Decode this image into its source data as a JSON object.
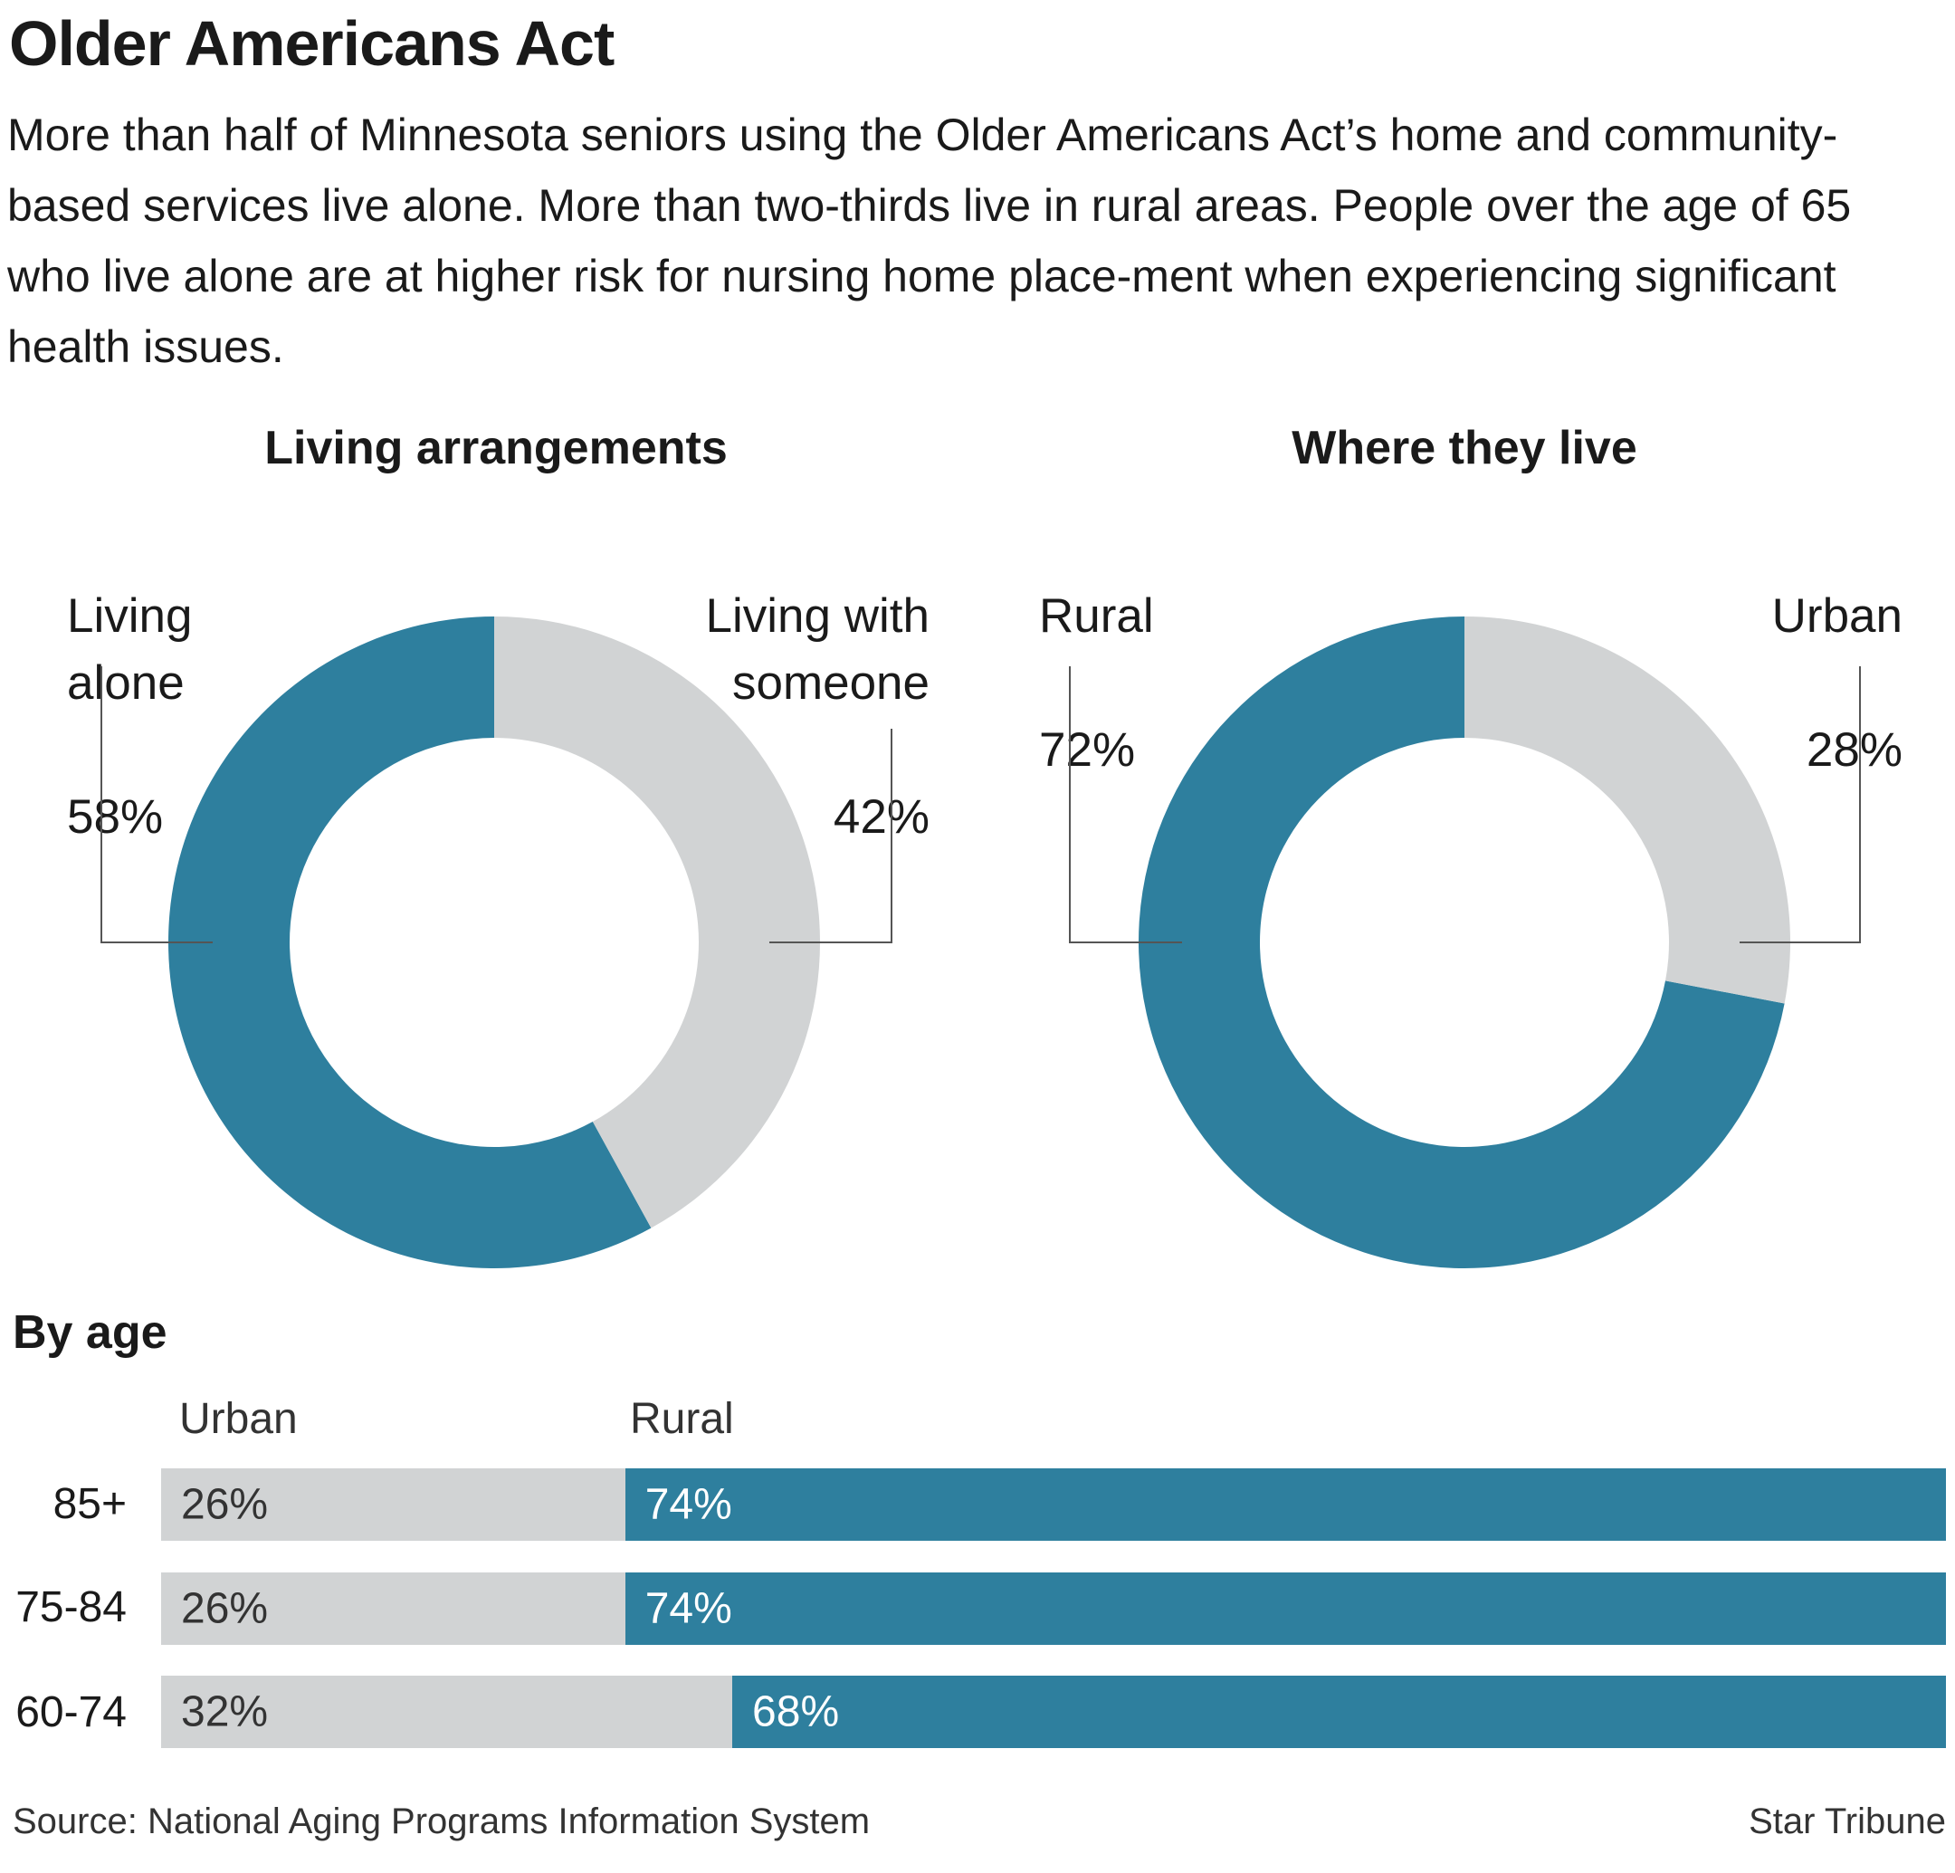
{
  "title": "Older Americans Act",
  "intro": "More than half of Minnesota seniors using the Older Americans Act’s home and community-based services live alone. More than two-thirds live in rural areas. People over the age of 65 who live alone are at higher risk for nursing home place-ment when experiencing significant health issues.",
  "colors": {
    "teal": "#2e7f9e",
    "gray": "#d1d3d4",
    "leader": "#555555"
  },
  "chart_data": [
    {
      "type": "pie",
      "title": "Living arrangements",
      "slices": [
        {
          "label": "Living\nalone",
          "value": 58,
          "value_label": "58%",
          "color": "#2e7f9e"
        },
        {
          "label": "Living with\nsomeone",
          "value": 42,
          "value_label": "42%",
          "color": "#d1d3d4"
        }
      ]
    },
    {
      "type": "pie",
      "title": "Where they live",
      "slices": [
        {
          "label": "Rural",
          "value": 72,
          "value_label": "72%",
          "color": "#2e7f9e"
        },
        {
          "label": "Urban",
          "value": 28,
          "value_label": "28%",
          "color": "#d1d3d4"
        }
      ]
    },
    {
      "type": "bar",
      "orientation": "horizontal-stacked",
      "title": "By age",
      "categories": [
        "85+",
        "75-84",
        "60-74"
      ],
      "series": [
        {
          "name": "Urban",
          "values": [
            26,
            26,
            32
          ],
          "labels": [
            "26%",
            "26%",
            "32%"
          ],
          "color": "#d1d3d4"
        },
        {
          "name": "Rural",
          "values": [
            74,
            74,
            68
          ],
          "labels": [
            "74%",
            "74%",
            "68%"
          ],
          "color": "#2e7f9e"
        }
      ]
    }
  ],
  "footer": {
    "source": "Source: National Aging Programs Information System",
    "credit": "Star Tribune"
  }
}
